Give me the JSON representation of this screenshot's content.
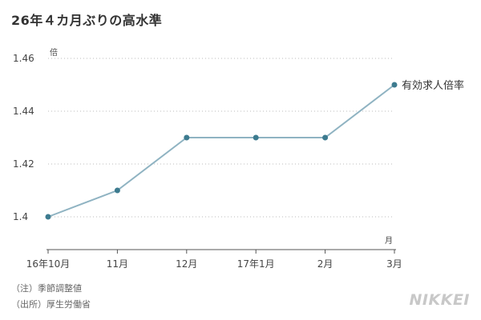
{
  "title": "26年４カ月ぶりの高水準",
  "notes": [
    "（注）季節調整値",
    "（出所）厚生労働省"
  ],
  "brand": "NIKKEI",
  "colors": {
    "line": "#8fb3c2",
    "marker": "#3d7b8f",
    "grid": "#bbbbbb"
  },
  "chart_data": {
    "type": "line",
    "title": "26年４カ月ぶりの高水準",
    "categories": [
      "16年10月",
      "11月",
      "12月",
      "17年1月",
      "2月",
      "3月"
    ],
    "series": [
      {
        "name": "有効求人倍率",
        "values": [
          1.4,
          1.41,
          1.43,
          1.43,
          1.43,
          1.45
        ]
      }
    ],
    "ylabel": "倍",
    "xlabel": "月",
    "ylim": [
      1.4,
      1.46
    ],
    "yticks": [
      1.4,
      1.42,
      1.44,
      1.46
    ],
    "ytick_labels": [
      "1.4",
      "1.42",
      "1.44",
      "1.46"
    ],
    "grid": true,
    "legend": "line-end label"
  }
}
